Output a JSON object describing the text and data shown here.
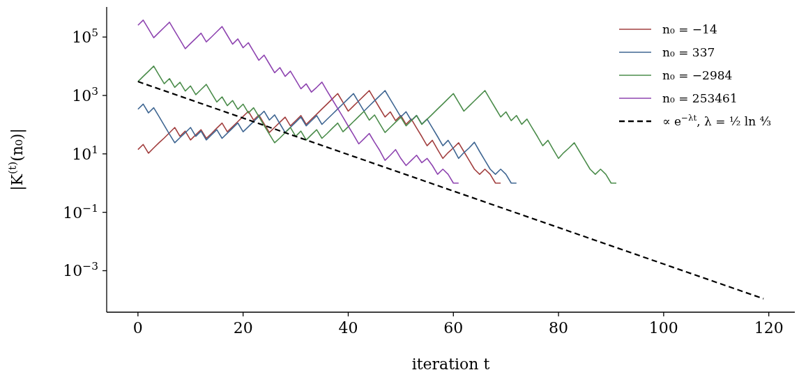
{
  "chart_data": {
    "type": "line",
    "xlabel": "iteration t",
    "ylabel": "|K$^{(t)}$(n₀)|",
    "log": "y",
    "grid": false,
    "legend": "top right",
    "marker": "none",
    "xlim": [
      -5.95,
      124.95
    ],
    "xticks": [
      0,
      20,
      40,
      60,
      80,
      100,
      120
    ],
    "ylim": [
      3.8e-05,
      1070000
    ],
    "yticks": [
      {
        "value": 0.001,
        "label": "10$^{−3}$"
      },
      {
        "value": 0.1,
        "label": "10$^{−1}$"
      },
      {
        "value": 10,
        "label": "10$^{1}$"
      },
      {
        "value": 1000,
        "label": "10$^{3}$"
      },
      {
        "value": 100000,
        "label": "10$^{5}$"
      }
    ],
    "series": [
      {
        "name": "n₀ = −14",
        "color": "#a23f3f",
        "line_style": "solid",
        "x": [
          0,
          1,
          2,
          3,
          4,
          5,
          6,
          7,
          8,
          9,
          10,
          11,
          12,
          13,
          14,
          15,
          16,
          17,
          18,
          19,
          20,
          21,
          22,
          23,
          24,
          25,
          26,
          27,
          28,
          29,
          30,
          31,
          32,
          33,
          34,
          35,
          36,
          37,
          38,
          39,
          40,
          41,
          42,
          43,
          44,
          45,
          46,
          47,
          48,
          49,
          50,
          51,
          52,
          53,
          54,
          55,
          56,
          57,
          58,
          59,
          60,
          61,
          62,
          63,
          64,
          65,
          66,
          67,
          68,
          69
        ],
        "values": [
          14,
          21,
          10.5,
          16,
          24,
          35,
          53,
          80,
          40,
          60,
          30,
          45,
          67,
          34,
          50,
          76,
          113,
          57,
          85,
          127,
          191,
          286,
          143,
          215,
          107,
          54,
          81,
          121,
          181,
          91,
          136,
          204,
          102,
          153,
          229,
          344,
          515,
          773,
          1160,
          580,
          290,
          435,
          652,
          977,
          1470,
          733,
          366,
          183,
          275,
          137,
          206,
          103,
          155,
          77,
          39,
          19,
          29,
          14,
          7,
          11,
          16,
          24,
          12,
          6,
          3,
          2,
          3,
          2,
          1,
          1
        ]
      },
      {
        "name": "n₀ = 337",
        "color": "#3f6692",
        "line_style": "solid",
        "x": [
          0,
          1,
          2,
          3,
          4,
          5,
          6,
          7,
          8,
          9,
          10,
          11,
          12,
          13,
          14,
          15,
          16,
          17,
          18,
          19,
          20,
          21,
          22,
          23,
          24,
          25,
          26,
          27,
          28,
          29,
          30,
          31,
          32,
          33,
          34,
          35,
          36,
          37,
          38,
          39,
          40,
          41,
          42,
          43,
          44,
          45,
          46,
          47,
          48,
          49,
          50,
          51,
          52,
          53,
          54,
          55,
          56,
          57,
          58,
          59,
          60,
          61,
          62,
          63,
          64,
          65,
          66,
          67,
          68,
          69,
          70,
          71,
          72
        ],
        "values": [
          337,
          506,
          253,
          380,
          190,
          95,
          47,
          24,
          36,
          53,
          80,
          40,
          60,
          30,
          45,
          67,
          34,
          51,
          76,
          114,
          57,
          85,
          128,
          192,
          288,
          144,
          216,
          108,
          54,
          81,
          121,
          182,
          91,
          136,
          205,
          102,
          154,
          230,
          345,
          518,
          776,
          1160,
          582,
          291,
          437,
          655,
          982,
          1470,
          736,
          368,
          184,
          276,
          138,
          207,
          104,
          155,
          78,
          39,
          19,
          29,
          15,
          7,
          11,
          16,
          25,
          12,
          6,
          3,
          2,
          3,
          2,
          1,
          1
        ]
      },
      {
        "name": "n₀ = −2984",
        "color": "#4b8c4b",
        "line_style": "solid",
        "x": [
          0,
          1,
          2,
          3,
          4,
          5,
          6,
          7,
          8,
          9,
          10,
          11,
          12,
          13,
          14,
          15,
          16,
          17,
          18,
          19,
          20,
          21,
          22,
          23,
          24,
          25,
          26,
          27,
          28,
          29,
          30,
          31,
          32,
          33,
          34,
          35,
          36,
          37,
          38,
          39,
          40,
          41,
          42,
          43,
          44,
          45,
          46,
          47,
          48,
          49,
          50,
          51,
          52,
          53,
          54,
          55,
          56,
          57,
          58,
          59,
          60,
          61,
          62,
          63,
          64,
          65,
          66,
          67,
          68,
          69,
          70,
          71,
          72,
          73,
          74,
          75,
          76,
          77,
          78,
          79,
          80,
          81,
          82,
          83,
          84,
          85,
          86,
          87,
          88,
          89,
          90,
          91
        ],
        "values": [
          2984,
          4480,
          6710,
          10100,
          5040,
          2520,
          3780,
          1890,
          2830,
          1420,
          2120,
          1060,
          1590,
          2390,
          1190,
          597,
          895,
          448,
          671,
          336,
          504,
          252,
          378,
          189,
          94,
          47,
          24,
          35,
          53,
          80,
          40,
          60,
          30,
          45,
          67,
          34,
          50,
          76,
          113,
          57,
          85,
          127,
          191,
          286,
          143,
          215,
          107,
          54,
          81,
          121,
          181,
          91,
          136,
          204,
          102,
          153,
          229,
          344,
          515,
          773,
          1160,
          580,
          290,
          435,
          652,
          977,
          1470,
          733,
          366,
          183,
          275,
          137,
          206,
          103,
          155,
          77,
          39,
          19,
          29,
          14,
          7,
          11,
          16,
          24,
          12,
          6,
          3,
          2,
          3,
          2,
          1,
          1
        ]
      },
      {
        "name": "n₀ = 253461",
        "color": "#8e44b0",
        "line_style": "solid",
        "x": [
          0,
          1,
          2,
          3,
          4,
          5,
          6,
          7,
          8,
          9,
          10,
          11,
          12,
          13,
          14,
          15,
          16,
          17,
          18,
          19,
          20,
          21,
          22,
          23,
          24,
          25,
          26,
          27,
          28,
          29,
          30,
          31,
          32,
          33,
          34,
          35,
          36,
          37,
          38,
          39,
          40,
          41,
          42,
          43,
          44,
          45,
          46,
          47,
          48,
          49,
          50,
          51,
          52,
          53,
          54,
          55,
          56,
          57,
          58,
          59,
          60,
          61
        ],
        "values": [
          253461,
          380000,
          190000,
          95000,
          143000,
          214000,
          321000,
          160000,
          80000,
          40000,
          60000,
          90000,
          135000,
          68000,
          101000,
          152000,
          228000,
          114000,
          57000,
          86000,
          43000,
          64000,
          32000,
          16000,
          24000,
          12000,
          6000,
          9000,
          4500,
          6800,
          3400,
          1700,
          2500,
          1300,
          1900,
          2850,
          1400,
          710,
          360,
          180,
          89,
          45,
          22,
          33,
          50,
          25,
          13,
          6,
          9,
          14,
          7,
          4,
          6,
          9,
          5,
          7,
          4,
          2,
          3,
          2,
          1,
          1
        ]
      },
      {
        "name": "∝ e$^{−λt}$,  λ = ½ ln ⁴⁄₃",
        "color": "#000000",
        "line_style": "dashed",
        "x": [
          0,
          119
        ],
        "values": [
          2984,
          0.00011
        ]
      }
    ]
  }
}
